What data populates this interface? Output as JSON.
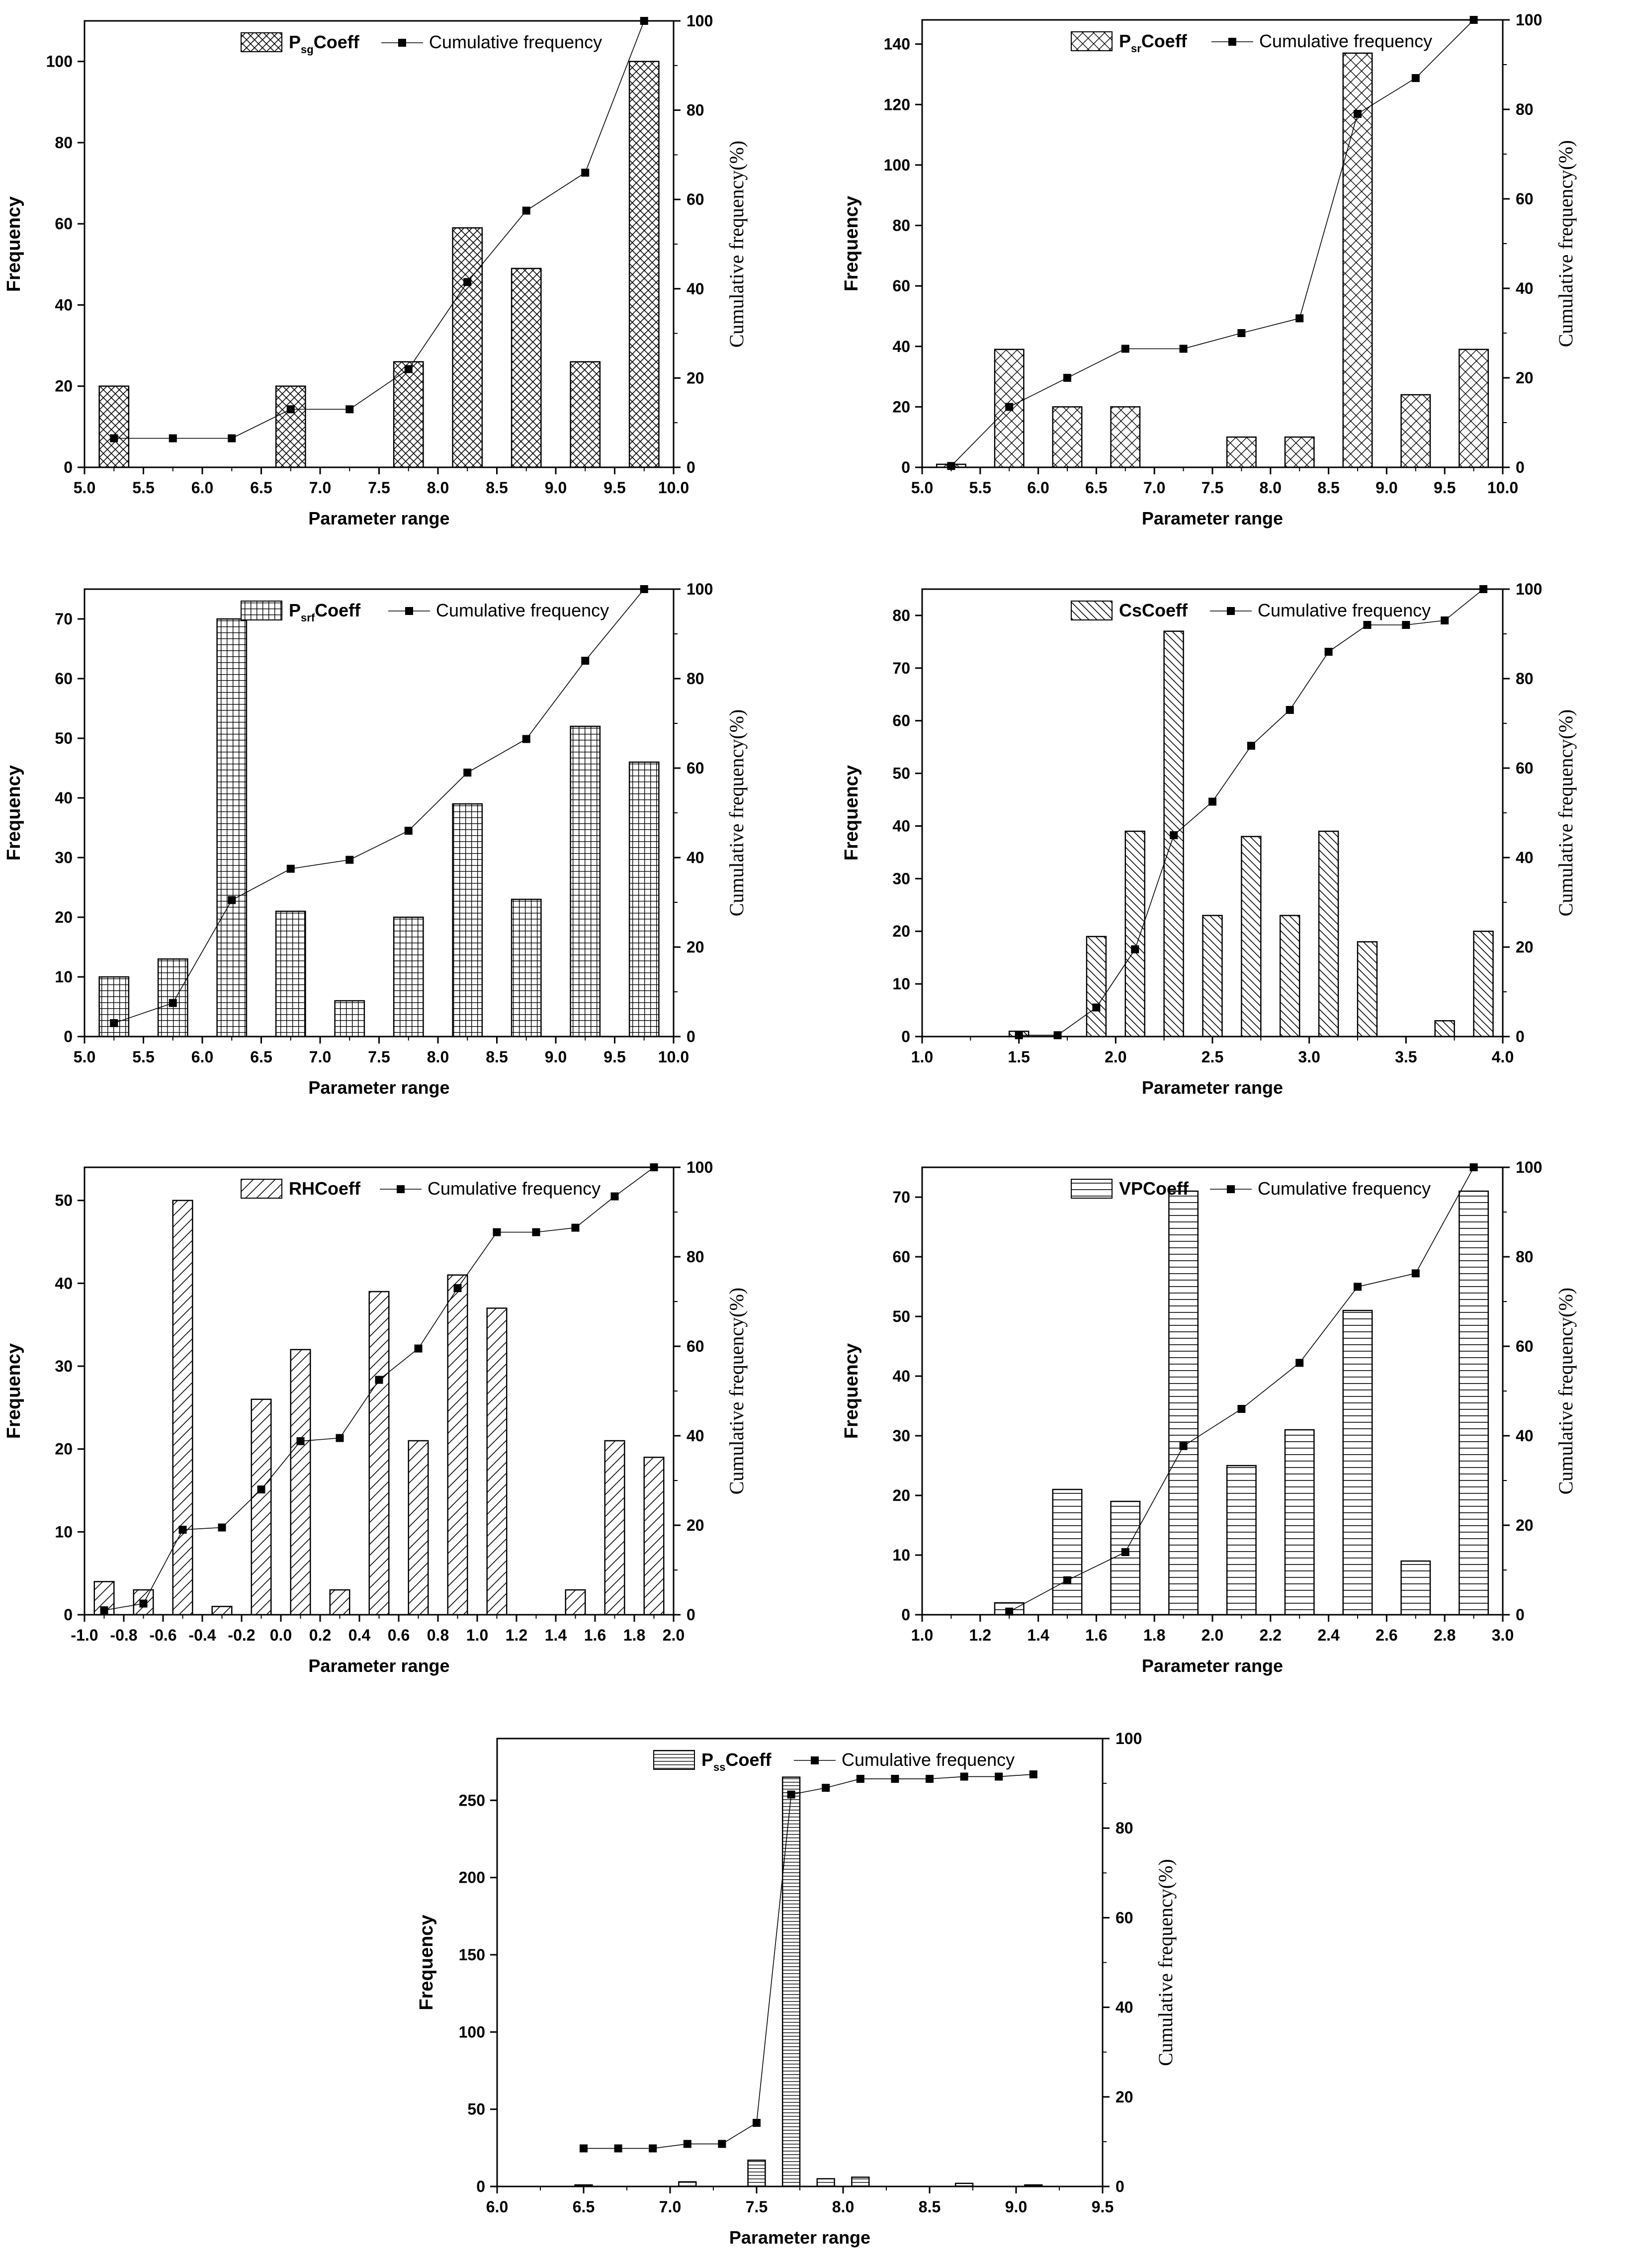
{
  "chart_data": [
    {
      "type": "bar",
      "title": "",
      "legend": {
        "bar_main": "P",
        "bar_sub": "sg",
        "bar_suffix": "Coeff",
        "line": "Cumulative frequency"
      },
      "pattern": "crosshatch",
      "xlabel": "Parameter range",
      "ylabel": "Frequency",
      "y2label": "Cumulative frequency(%)",
      "xlim": [
        5.0,
        10.0
      ],
      "ylim": [
        0,
        110
      ],
      "y2lim": [
        0,
        100
      ],
      "xticks": [
        "5.0",
        "5.5",
        "6.0",
        "6.5",
        "7.0",
        "7.5",
        "8.0",
        "8.5",
        "9.0",
        "9.5",
        "10.0"
      ],
      "yticks": [
        0,
        20,
        40,
        60,
        80,
        100
      ],
      "y2ticks": [
        0,
        20,
        40,
        60,
        80,
        100
      ],
      "bar_width": 0.25,
      "bars": {
        "x": [
          5.25,
          6.75,
          7.75,
          8.25,
          8.75,
          9.25,
          9.75
        ],
        "values": [
          20,
          20,
          26,
          59,
          49,
          26,
          100
        ]
      },
      "cumulative": {
        "x": [
          5.25,
          5.75,
          6.25,
          6.75,
          7.25,
          7.75,
          8.25,
          8.75,
          9.25,
          9.75
        ],
        "values": [
          6.5,
          6.5,
          6.5,
          13,
          13,
          22,
          41.5,
          57.5,
          66,
          100
        ]
      }
    },
    {
      "type": "bar",
      "title": "",
      "legend": {
        "bar_main": "P",
        "bar_sub": "sr",
        "bar_suffix": "Coeff",
        "line": "Cumulative frequency"
      },
      "pattern": "diamond",
      "xlabel": "Parameter range",
      "ylabel": "Frequency",
      "y2label": "Cumulative frequency(%)",
      "xlim": [
        5.0,
        10.0
      ],
      "ylim": [
        0,
        148
      ],
      "y2lim": [
        0,
        100
      ],
      "xticks": [
        "5.0",
        "5.5",
        "6.0",
        "6.5",
        "7.0",
        "7.5",
        "8.0",
        "8.5",
        "9.0",
        "9.5",
        "10.0"
      ],
      "yticks": [
        0,
        20,
        40,
        60,
        80,
        100,
        120,
        140
      ],
      "y2ticks": [
        0,
        20,
        40,
        60,
        80,
        100
      ],
      "bar_width": 0.25,
      "bars": {
        "x": [
          5.25,
          5.75,
          6.25,
          6.75,
          7.75,
          8.25,
          8.75,
          9.25,
          9.75
        ],
        "values": [
          1,
          39,
          20,
          20,
          10,
          10,
          137,
          24,
          39
        ]
      },
      "cumulative": {
        "x": [
          5.25,
          5.75,
          6.25,
          6.75,
          7.25,
          7.75,
          8.25,
          8.75,
          9.25,
          9.75
        ],
        "values": [
          0.3,
          13.5,
          20,
          26.5,
          26.5,
          30,
          33.3,
          79,
          87,
          100
        ]
      }
    },
    {
      "type": "bar",
      "title": "",
      "legend": {
        "bar_main": "P",
        "bar_sub": "srf",
        "bar_suffix": "Coeff",
        "line": "Cumulative frequency"
      },
      "pattern": "grid",
      "xlabel": "Parameter range",
      "ylabel": "Frequency",
      "y2label": "Cumulative frequency(%)",
      "xlim": [
        5.0,
        10.0
      ],
      "ylim": [
        0,
        75
      ],
      "y2lim": [
        0,
        100
      ],
      "xticks": [
        "5.0",
        "5.5",
        "6.0",
        "6.5",
        "7.0",
        "7.5",
        "8.0",
        "8.5",
        "9.0",
        "9.5",
        "10.0"
      ],
      "yticks": [
        0,
        10,
        20,
        30,
        40,
        50,
        60,
        70
      ],
      "y2ticks": [
        0,
        20,
        40,
        60,
        80,
        100
      ],
      "bar_width": 0.25,
      "bars": {
        "x": [
          5.25,
          5.75,
          6.25,
          6.75,
          7.25,
          7.75,
          8.25,
          8.75,
          9.25,
          9.75
        ],
        "values": [
          10,
          13,
          70,
          21,
          6,
          20,
          39,
          23,
          52,
          46
        ]
      },
      "cumulative": {
        "x": [
          5.25,
          5.75,
          6.25,
          6.75,
          7.25,
          7.75,
          8.25,
          8.75,
          9.25,
          9.75
        ],
        "values": [
          3,
          7.5,
          30.5,
          37.5,
          39.5,
          46,
          59,
          66.5,
          84,
          100
        ]
      }
    },
    {
      "type": "bar",
      "title": "",
      "legend": {
        "bar_main": "CsCoeff",
        "bar_sub": "",
        "bar_suffix": "",
        "line": "Cumulative frequency"
      },
      "pattern": "diag-down",
      "xlabel": "Parameter range",
      "ylabel": "Frequency",
      "y2label": "Cumulative frequency(%)",
      "xlim": [
        1.0,
        4.0
      ],
      "ylim": [
        0,
        85
      ],
      "y2lim": [
        0,
        100
      ],
      "xticks": [
        "1.0",
        "1.5",
        "2.0",
        "2.5",
        "3.0",
        "3.5",
        "4.0"
      ],
      "yticks": [
        0,
        10,
        20,
        30,
        40,
        50,
        60,
        70,
        80
      ],
      "y2ticks": [
        0,
        20,
        40,
        60,
        80,
        100
      ],
      "bar_width": 0.1,
      "bars": {
        "x": [
          1.5,
          1.9,
          2.1,
          2.3,
          2.5,
          2.7,
          2.9,
          3.1,
          3.3,
          3.7,
          3.9
        ],
        "values": [
          1,
          19,
          39,
          77,
          23,
          38,
          23,
          39,
          18,
          3,
          20
        ]
      },
      "cumulative": {
        "x": [
          1.5,
          1.7,
          1.9,
          2.1,
          2.3,
          2.5,
          2.7,
          2.9,
          3.1,
          3.3,
          3.5,
          3.7,
          3.9
        ],
        "values": [
          0.3,
          0.3,
          6.5,
          19.5,
          45,
          52.5,
          65,
          73,
          86,
          92,
          92,
          93,
          100
        ]
      }
    },
    {
      "type": "bar",
      "title": "",
      "legend": {
        "bar_main": "RHCoeff",
        "bar_sub": "",
        "bar_suffix": "",
        "line": "Cumulative frequency"
      },
      "pattern": "diag-up",
      "xlabel": "Parameter range",
      "ylabel": "Frequency",
      "y2label": "Cumulative frequency(%)",
      "xlim": [
        -1.0,
        2.0
      ],
      "ylim": [
        0,
        54
      ],
      "y2lim": [
        0,
        100
      ],
      "xticks": [
        "-1.0",
        "-0.8",
        "-0.6",
        "-0.4",
        "-0.2",
        "0.0",
        "0.2",
        "0.4",
        "0.6",
        "0.8",
        "1.0",
        "1.2",
        "1.4",
        "1.6",
        "1.8",
        "2.0"
      ],
      "yticks": [
        0,
        10,
        20,
        30,
        40,
        50
      ],
      "y2ticks": [
        0,
        20,
        40,
        60,
        80,
        100
      ],
      "bar_width": 0.1,
      "bars": {
        "x": [
          -0.9,
          -0.7,
          -0.5,
          -0.3,
          -0.1,
          0.1,
          0.3,
          0.5,
          0.7,
          0.9,
          1.1,
          1.5,
          1.7,
          1.9
        ],
        "values": [
          4,
          3,
          50,
          1,
          26,
          32,
          3,
          39,
          21,
          41,
          37,
          3,
          21,
          19
        ]
      },
      "cumulative": {
        "x": [
          -0.9,
          -0.7,
          -0.5,
          -0.3,
          -0.1,
          0.1,
          0.3,
          0.5,
          0.7,
          0.9,
          1.1,
          1.3,
          1.5,
          1.7,
          1.9
        ],
        "values": [
          1,
          2.5,
          19,
          19.5,
          28,
          38.8,
          39.5,
          52.5,
          59.5,
          73,
          85.5,
          85.5,
          86.5,
          93.5,
          100
        ]
      }
    },
    {
      "type": "bar",
      "title": "",
      "legend": {
        "bar_main": "VPCoeff",
        "bar_sub": "",
        "bar_suffix": "",
        "line": "Cumulative frequency"
      },
      "pattern": "horizontal",
      "xlabel": "Parameter range",
      "ylabel": "Frequency",
      "y2label": "Cumulative frequency(%)",
      "xlim": [
        1.0,
        3.0
      ],
      "ylim": [
        0,
        75
      ],
      "y2lim": [
        0,
        100
      ],
      "xticks": [
        "1.0",
        "1.2",
        "1.4",
        "1.6",
        "1.8",
        "2.0",
        "2.2",
        "2.4",
        "2.6",
        "2.8",
        "3.0"
      ],
      "yticks": [
        0,
        10,
        20,
        30,
        40,
        50,
        60,
        70
      ],
      "y2ticks": [
        0,
        20,
        40,
        60,
        80,
        100
      ],
      "bar_width": 0.1,
      "bars": {
        "x": [
          1.3,
          1.5,
          1.7,
          1.9,
          2.1,
          2.3,
          2.5,
          2.7,
          2.9
        ],
        "values": [
          2,
          21,
          19,
          71,
          25,
          31,
          51,
          9,
          71
        ]
      },
      "cumulative": {
        "x": [
          1.3,
          1.5,
          1.7,
          1.9,
          2.1,
          2.3,
          2.5,
          2.7,
          2.9
        ],
        "values": [
          0.7,
          7.7,
          14,
          37.7,
          46,
          56.3,
          73.3,
          76.3,
          100
        ]
      }
    },
    {
      "type": "bar",
      "title": "",
      "legend": {
        "bar_main": "P",
        "bar_sub": "ss",
        "bar_suffix": "Coeff",
        "line": "Cumulative frequency"
      },
      "pattern": "horizontal-dense",
      "xlabel": "Parameter range",
      "ylabel": "Frequency",
      "y2label": "Cumulative frequency(%)",
      "xlim": [
        6.0,
        9.5
      ],
      "ylim": [
        0,
        290
      ],
      "y2lim": [
        0,
        100
      ],
      "xticks": [
        "6.0",
        "6.5",
        "7.0",
        "7.5",
        "8.0",
        "8.5",
        "9.0",
        "9.5"
      ],
      "yticks": [
        0,
        50,
        100,
        150,
        200,
        250
      ],
      "y2ticks": [
        0,
        20,
        40,
        60,
        80,
        100
      ],
      "bar_width": 0.1,
      "bars": {
        "x": [
          6.5,
          7.1,
          7.5,
          7.7,
          7.9,
          8.1,
          8.7,
          9.1
        ],
        "values": [
          1,
          3,
          17,
          265,
          5,
          6,
          2,
          1
        ]
      },
      "cumulative": {
        "x": [
          6.5,
          6.7,
          6.9,
          7.1,
          7.3,
          7.5,
          7.7,
          7.9,
          8.1,
          8.3,
          8.5,
          8.7,
          8.9,
          9.1
        ],
        "values": [
          8.5,
          8.5,
          8.5,
          9.5,
          9.5,
          14.2,
          87.5,
          89,
          91,
          91,
          91,
          91.5,
          91.5,
          92
        ]
      }
    }
  ]
}
